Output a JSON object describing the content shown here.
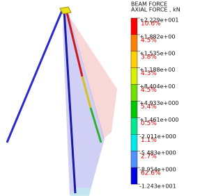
{
  "legend": {
    "title": [
      "BEAM FORCE",
      "AXIAL FORCE , kN"
    ],
    "labels": [
      "+2.229e+001",
      "+1.882e+00",
      "+1.535e+00",
      "+1.188e+00",
      "+8.404e+00",
      "+4.933e+000",
      "+1.461e+000",
      "-2.011e+000",
      "-5.483e+000",
      "-8.954e+000",
      "-1.243e+001"
    ],
    "percents": [
      "10.6%",
      "4.5%",
      "3.8%",
      "4.3%",
      "4.5%",
      "5.4%",
      "0.5%",
      "1.1%",
      "2.7%",
      "62.6%"
    ]
  }
}
